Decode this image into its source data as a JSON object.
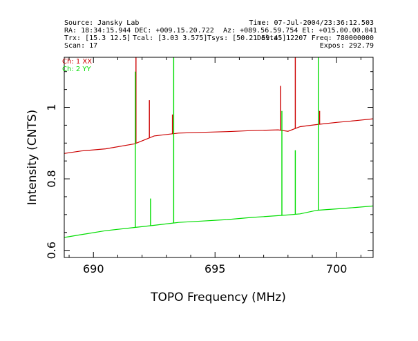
{
  "header": {
    "source": "Source: Jansky Lab",
    "time": "Time: 07-Jul-2004/23:36:12.503",
    "radec": "RA: 18:34:15.944 DEC: +009.15.20.722",
    "azel": "Az: +089.56.59.754 El: +015.00.00.041",
    "trx": "Trx: [15.3 12.5]",
    "tcal": "Tcal: [3.03 3.575]",
    "tsys": "Tsys: [50.21 59.45]",
    "delta": "Delta: 12207",
    "freq": "Freq: 780000000",
    "scan": "Scan: 17",
    "expos": "Expos: 292.79"
  },
  "colors": {
    "ch1": "#cc0000",
    "ch2": "#00dd00",
    "axis": "#000000"
  },
  "chart_data": {
    "type": "line",
    "xlabel": "TOPO Frequency (MHz)",
    "ylabel": "Intensity (CNTS)",
    "xlim": [
      688.8,
      701.5
    ],
    "ylim": [
      0.58,
      1.14
    ],
    "x_ticks": [
      690,
      695,
      700
    ],
    "y_ticks": [
      0.6,
      0.8,
      1
    ],
    "x_tick_labels": [
      "690",
      "695",
      "700"
    ],
    "y_tick_labels": [
      "0.6",
      "0.8",
      "1"
    ],
    "legend_placement": "top-left",
    "series": [
      {
        "name": "Ch: 1 XX",
        "color": "#cc0000",
        "baseline": [
          [
            688.8,
            0.871
          ],
          [
            689.5,
            0.878
          ],
          [
            690.5,
            0.884
          ],
          [
            691.7,
            0.898
          ],
          [
            692.5,
            0.92
          ],
          [
            693.5,
            0.928
          ],
          [
            694.5,
            0.93
          ],
          [
            695.5,
            0.932
          ],
          [
            696.5,
            0.935
          ],
          [
            697.6,
            0.937
          ],
          [
            698.0,
            0.933
          ],
          [
            698.5,
            0.946
          ],
          [
            699.2,
            0.952
          ],
          [
            700.0,
            0.958
          ],
          [
            700.8,
            0.963
          ],
          [
            701.5,
            0.968
          ]
        ],
        "spikes": [
          {
            "x": 691.75,
            "peak": 1.14
          },
          {
            "x": 692.3,
            "peak": 1.02
          },
          {
            "x": 693.25,
            "peak": 0.98
          },
          {
            "x": 697.7,
            "peak": 1.06
          },
          {
            "x": 698.3,
            "peak": 1.14
          },
          {
            "x": 699.3,
            "peak": 0.99
          }
        ]
      },
      {
        "name": "Ch: 2 YY",
        "color": "#00dd00",
        "baseline": [
          [
            688.8,
            0.636
          ],
          [
            689.5,
            0.644
          ],
          [
            690.5,
            0.655
          ],
          [
            691.7,
            0.664
          ],
          [
            692.5,
            0.67
          ],
          [
            693.5,
            0.678
          ],
          [
            694.5,
            0.682
          ],
          [
            695.5,
            0.686
          ],
          [
            696.5,
            0.692
          ],
          [
            697.6,
            0.697
          ],
          [
            698.0,
            0.699
          ],
          [
            698.5,
            0.702
          ],
          [
            699.2,
            0.712
          ],
          [
            700.0,
            0.716
          ],
          [
            700.8,
            0.72
          ],
          [
            701.5,
            0.724
          ]
        ],
        "spikes": [
          {
            "x": 691.72,
            "peak": 1.1
          },
          {
            "x": 692.35,
            "peak": 0.745
          },
          {
            "x": 693.3,
            "peak": 1.14
          },
          {
            "x": 697.75,
            "peak": 0.99
          },
          {
            "x": 698.3,
            "peak": 0.88
          },
          {
            "x": 699.25,
            "peak": 1.14
          }
        ]
      }
    ]
  }
}
